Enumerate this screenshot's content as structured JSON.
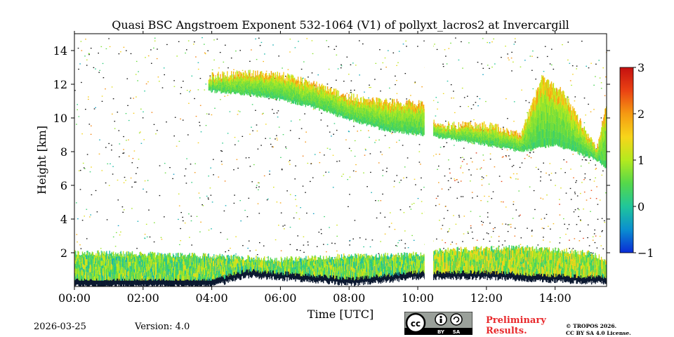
{
  "chart_data": {
    "type": "heatmap",
    "title": "Quasi BSC Angstroem Exponent 532-1064 (V1) of pollyxt_lacros2 at Invercargill",
    "xlabel": "Time [UTC]",
    "ylabel": "Height [km]",
    "xlim": [
      0,
      15.5
    ],
    "ylim": [
      0,
      15
    ],
    "xticks": [
      {
        "value": 0,
        "label": "00:00"
      },
      {
        "value": 2,
        "label": "02:00"
      },
      {
        "value": 4,
        "label": "04:00"
      },
      {
        "value": 6,
        "label": "06:00"
      },
      {
        "value": 8,
        "label": "08:00"
      },
      {
        "value": 10,
        "label": "10:00"
      },
      {
        "value": 12,
        "label": "12:00"
      },
      {
        "value": 14,
        "label": "14:00"
      }
    ],
    "yticks": [
      {
        "value": 2,
        "label": "2"
      },
      {
        "value": 4,
        "label": "4"
      },
      {
        "value": 6,
        "label": "6"
      },
      {
        "value": 8,
        "label": "8"
      },
      {
        "value": 10,
        "label": "10"
      },
      {
        "value": 12,
        "label": "12"
      },
      {
        "value": 14,
        "label": "14"
      }
    ],
    "colorbar": {
      "range": [
        -1,
        3
      ],
      "ticks": [
        {
          "value": 3,
          "label": "3"
        },
        {
          "value": 2,
          "label": "2"
        },
        {
          "value": 1,
          "label": "1"
        },
        {
          "value": 0,
          "label": "0"
        },
        {
          "value": -1,
          "label": "−1"
        }
      ],
      "colors": [
        "#0a2bd6",
        "#0a8fd0",
        "#20c69a",
        "#55d84a",
        "#b4ea1e",
        "#f7d51a",
        "#f59a12",
        "#ea4213",
        "#c41010"
      ]
    },
    "data_gap": {
      "start": 10.2,
      "end": 10.45
    },
    "cloud_layer": {
      "start": 3.9,
      "end": 15.5,
      "top_km": [
        [
          3.9,
          12.4
        ],
        [
          5.0,
          12.6
        ],
        [
          6.0,
          12.5
        ],
        [
          7.0,
          11.9
        ],
        [
          8.0,
          11.2
        ],
        [
          9.0,
          10.9
        ],
        [
          10.0,
          10.8
        ],
        [
          10.2,
          10.6
        ],
        [
          10.5,
          9.5
        ],
        [
          12.0,
          9.5
        ],
        [
          13.0,
          9.0
        ],
        [
          13.6,
          12.3
        ],
        [
          14.2,
          11.5
        ],
        [
          15.2,
          8.0
        ],
        [
          15.5,
          11.0
        ]
      ],
      "base_km": [
        [
          3.9,
          11.6
        ],
        [
          5.0,
          11.4
        ],
        [
          6.0,
          11.1
        ],
        [
          7.0,
          10.6
        ],
        [
          8.0,
          9.9
        ],
        [
          9.0,
          9.3
        ],
        [
          10.0,
          9.0
        ],
        [
          10.2,
          9.0
        ],
        [
          10.5,
          8.9
        ],
        [
          12.0,
          8.4
        ],
        [
          13.0,
          8.0
        ],
        [
          14.0,
          8.4
        ],
        [
          15.2,
          7.5
        ],
        [
          15.5,
          7.0
        ]
      ]
    },
    "boundary_layer": {
      "top_km": [
        [
          0,
          2.0
        ],
        [
          2,
          1.9
        ],
        [
          4,
          1.8
        ],
        [
          6,
          1.6
        ],
        [
          8,
          1.8
        ],
        [
          10,
          1.9
        ],
        [
          11,
          2.2
        ],
        [
          13,
          2.3
        ],
        [
          15,
          2.0
        ],
        [
          15.5,
          1.5
        ]
      ],
      "bottom_km": [
        [
          0,
          0.0
        ],
        [
          4,
          0.0
        ],
        [
          5,
          0.6
        ],
        [
          7,
          0.3
        ],
        [
          8,
          0.1
        ],
        [
          10,
          0.5
        ],
        [
          12,
          0.5
        ],
        [
          14,
          0.3
        ],
        [
          15.5,
          0.2
        ]
      ]
    }
  },
  "footer": {
    "date": "2026-03-25",
    "version": "Version: 4.0",
    "preliminary_line1": "Preliminary",
    "preliminary_line2": "Results.",
    "license_line1": "© TROPOS 2026.",
    "license_line2": "CC BY SA 4.0 License.",
    "badge_by": "BY",
    "badge_sa": "SA"
  }
}
